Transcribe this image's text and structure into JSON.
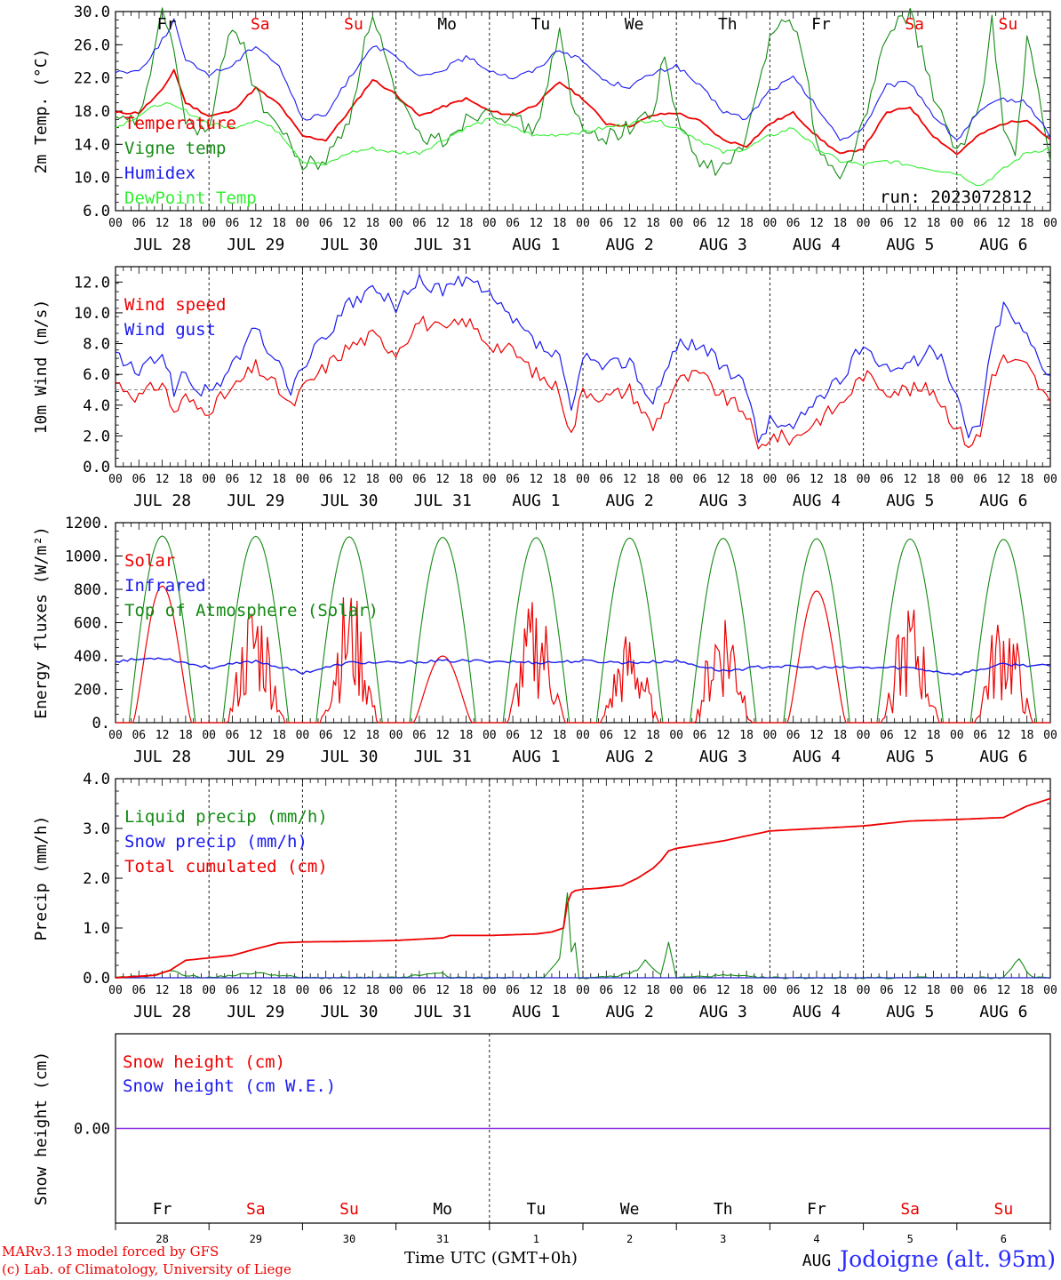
{
  "footer": {
    "credit_line1": "MARv3.13 model forced by GFS",
    "credit_line2": "(c) Lab. of Climatology, University of Liege",
    "xaxis_label": "Time UTC (GMT+0h)",
    "station": "Jodoigne (alt. 95m)"
  },
  "colors": {
    "red": "#ee0000",
    "green": "#138a13",
    "blue": "#1a1aee",
    "lightgreen": "#33ee33",
    "snowline": "#8a2be2"
  },
  "weekdays": [
    {
      "label": "Fr",
      "weekend": false
    },
    {
      "label": "Sa",
      "weekend": true
    },
    {
      "label": "Su",
      "weekend": true
    },
    {
      "label": "Mo",
      "weekend": false
    },
    {
      "label": "Tu",
      "weekend": false
    },
    {
      "label": "We",
      "weekend": false
    },
    {
      "label": "Th",
      "weekend": false
    },
    {
      "label": "Fr",
      "weekend": false
    },
    {
      "label": "Sa",
      "weekend": true
    },
    {
      "label": "Su",
      "weekend": true
    }
  ],
  "chart_data": [
    {
      "type": "line",
      "ylabel": "2m Temp. (°C)",
      "ylim": [
        6.0,
        30.0
      ],
      "yticks": [
        "6.0",
        "10.0",
        "14.0",
        "18.0",
        "22.0",
        "26.0",
        "30.0"
      ],
      "xlim": [
        0,
        240
      ],
      "hour_ticks": [
        "00",
        "06",
        "12",
        "18"
      ],
      "day_labels": [
        "JUL 28",
        "JUL 29",
        "JUL 30",
        "JUL 31",
        "AUG  1",
        "AUG  2",
        "AUG  3",
        "AUG  4",
        "AUG  5",
        "AUG  6"
      ],
      "annotation": "run: 2023072812",
      "series": [
        {
          "name": "Temperature",
          "color": "#ee0000",
          "x": [
            0,
            6,
            12,
            15,
            18,
            24,
            30,
            36,
            42,
            48,
            54,
            60,
            66,
            72,
            78,
            84,
            90,
            96,
            102,
            108,
            114,
            120,
            126,
            132,
            138,
            144,
            150,
            156,
            162,
            168,
            174,
            180,
            186,
            192,
            198,
            204,
            210,
            216,
            222,
            228,
            234,
            240
          ],
          "y": [
            17.8,
            17.8,
            20.5,
            23.0,
            19.0,
            17.4,
            18.0,
            20.8,
            18.8,
            15.0,
            14.5,
            18.0,
            21.8,
            20.0,
            17.4,
            18.5,
            19.5,
            18.0,
            17.5,
            18.8,
            21.5,
            19.5,
            16.5,
            16.2,
            17.5,
            17.8,
            16.8,
            14.5,
            13.8,
            16.5,
            17.8,
            15.0,
            12.8,
            13.5,
            17.8,
            18.5,
            15.0,
            12.8,
            15.2,
            16.5,
            17.0,
            14.5
          ]
        },
        {
          "name": "Vigne temp",
          "color": "#138a13",
          "x": [
            0,
            6,
            10,
            12,
            14,
            18,
            24,
            27,
            30,
            33,
            36,
            42,
            48,
            54,
            60,
            63,
            66,
            69,
            72,
            78,
            84,
            90,
            96,
            102,
            108,
            111,
            114,
            117,
            120,
            126,
            132,
            138,
            141,
            144,
            150,
            156,
            162,
            168,
            171,
            174,
            177,
            180,
            186,
            192,
            198,
            204,
            210,
            216,
            222,
            225,
            228,
            231,
            234,
            240
          ],
          "y": [
            16.5,
            17.0,
            25.0,
            29.5,
            28.0,
            16.5,
            15.5,
            22.5,
            28.5,
            26.0,
            20.0,
            16.0,
            11.5,
            12.0,
            17.0,
            24.0,
            30.0,
            25.0,
            19.5,
            15.0,
            14.5,
            17.0,
            18.5,
            17.0,
            15.5,
            22.0,
            27.5,
            19.0,
            15.5,
            15.0,
            16.0,
            18.0,
            25.0,
            17.0,
            11.5,
            11.0,
            14.5,
            27.0,
            30.0,
            28.0,
            24.0,
            14.0,
            9.5,
            16.5,
            27.0,
            30.0,
            20.0,
            12.5,
            19.0,
            29.0,
            16.0,
            12.0,
            27.0,
            12.0
          ]
        },
        {
          "name": "Humidex",
          "color": "#1a1aee",
          "x": [
            0,
            6,
            12,
            15,
            18,
            24,
            30,
            36,
            42,
            48,
            54,
            60,
            66,
            72,
            78,
            84,
            90,
            96,
            102,
            108,
            114,
            120,
            126,
            132,
            138,
            144,
            150,
            156,
            162,
            168,
            174,
            180,
            186,
            192,
            198,
            204,
            210,
            216,
            222,
            228,
            234,
            240
          ],
          "y": [
            22.8,
            22.8,
            26.5,
            29.0,
            24.0,
            22.5,
            23.5,
            26.0,
            23.5,
            17.0,
            17.5,
            22.0,
            26.0,
            24.5,
            22.0,
            23.0,
            24.5,
            23.0,
            22.0,
            23.0,
            25.5,
            24.0,
            21.5,
            21.0,
            22.5,
            23.5,
            21.0,
            18.0,
            17.0,
            20.5,
            22.0,
            18.5,
            14.5,
            16.0,
            21.0,
            21.5,
            17.5,
            14.5,
            18.0,
            19.5,
            19.0,
            15.0
          ]
        },
        {
          "name": "DewPoint Temp",
          "color": "#33ee33",
          "x": [
            0,
            6,
            12,
            18,
            24,
            30,
            36,
            42,
            48,
            54,
            60,
            66,
            72,
            78,
            84,
            90,
            96,
            102,
            108,
            114,
            120,
            126,
            132,
            138,
            144,
            150,
            156,
            162,
            168,
            174,
            180,
            186,
            192,
            198,
            204,
            210,
            216,
            222,
            228,
            234,
            240
          ],
          "y": [
            16.0,
            17.5,
            19.0,
            18.0,
            16.5,
            16.0,
            17.0,
            15.5,
            12.0,
            11.5,
            13.0,
            13.5,
            13.0,
            13.0,
            14.5,
            16.0,
            17.0,
            16.0,
            15.0,
            15.2,
            15.5,
            16.0,
            16.5,
            17.0,
            16.0,
            14.5,
            13.0,
            13.5,
            15.0,
            16.0,
            13.5,
            12.0,
            11.5,
            12.0,
            11.5,
            11.0,
            10.5,
            9.0,
            11.0,
            13.0,
            13.5
          ]
        }
      ]
    },
    {
      "type": "line",
      "ylabel": "10m Wind (m/s)",
      "ylim": [
        0.0,
        13.0
      ],
      "yticks": [
        "0.0",
        "2.0",
        "4.0",
        "6.0",
        "8.0",
        "10.0",
        "12.0"
      ],
      "xlim": [
        0,
        240
      ],
      "reference_line": 5.0,
      "series": [
        {
          "name": "Wind speed",
          "color": "#ee0000",
          "x": [
            0,
            6,
            12,
            15,
            18,
            21,
            24,
            30,
            36,
            42,
            45,
            48,
            54,
            60,
            66,
            72,
            78,
            84,
            90,
            96,
            102,
            108,
            114,
            117,
            120,
            126,
            132,
            138,
            144,
            150,
            156,
            162,
            165,
            168,
            174,
            180,
            186,
            192,
            198,
            204,
            210,
            216,
            219,
            222,
            225,
            228,
            234,
            240
          ],
          "y": [
            5.5,
            4.5,
            5.5,
            3.5,
            4.5,
            3.8,
            3.8,
            5.0,
            6.5,
            5.0,
            3.8,
            5.0,
            6.5,
            7.8,
            8.5,
            7.5,
            9.5,
            8.8,
            9.5,
            8.0,
            7.5,
            6.0,
            5.0,
            2.0,
            5.0,
            4.5,
            5.0,
            2.5,
            5.5,
            6.0,
            4.5,
            3.5,
            1.0,
            2.0,
            1.8,
            3.0,
            4.0,
            6.0,
            5.0,
            5.0,
            5.0,
            2.5,
            1.5,
            2.0,
            6.0,
            7.0,
            6.5,
            4.0
          ]
        },
        {
          "name": "Wind gust",
          "color": "#1a1aee",
          "x": [
            0,
            6,
            12,
            15,
            18,
            21,
            24,
            30,
            36,
            42,
            45,
            48,
            54,
            60,
            66,
            72,
            78,
            84,
            90,
            96,
            102,
            108,
            114,
            117,
            120,
            126,
            132,
            138,
            144,
            150,
            156,
            162,
            165,
            168,
            174,
            180,
            186,
            192,
            198,
            204,
            210,
            216,
            219,
            222,
            225,
            228,
            234,
            240
          ],
          "y": [
            7.3,
            6.0,
            7.5,
            5.0,
            6.0,
            5.0,
            4.8,
            6.5,
            9.0,
            6.5,
            5.0,
            6.5,
            8.5,
            10.5,
            11.5,
            10.5,
            12.0,
            11.5,
            12.2,
            11.0,
            9.5,
            8.0,
            7.0,
            3.5,
            7.0,
            6.5,
            7.0,
            4.0,
            8.0,
            8.0,
            6.5,
            5.0,
            1.8,
            3.0,
            2.5,
            4.5,
            5.5,
            8.0,
            6.5,
            6.5,
            8.0,
            4.5,
            2.0,
            3.0,
            8.0,
            10.5,
            8.5,
            6.0
          ]
        }
      ]
    },
    {
      "type": "line",
      "ylabel": "Energy fluxes (W/m²)",
      "ylim": [
        0,
        1200
      ],
      "yticks": [
        "0.",
        "200.",
        "400.",
        "600.",
        "800.",
        "1000.",
        "1200."
      ],
      "xlim": [
        0,
        240
      ],
      "series": [
        {
          "name": "Solar",
          "color": "#ee0000",
          "daily_peak": [
            820,
            790,
            830,
            400,
            780,
            560,
            760,
            790,
            740,
            720
          ],
          "daily_broken": [
            false,
            true,
            true,
            false,
            true,
            true,
            true,
            false,
            true,
            true
          ]
        },
        {
          "name": "Infrared",
          "color": "#1a1aee",
          "x": [
            0,
            12,
            24,
            36,
            48,
            60,
            72,
            84,
            96,
            108,
            120,
            132,
            144,
            156,
            168,
            180,
            192,
            204,
            216,
            228,
            240
          ],
          "y": [
            370,
            390,
            330,
            370,
            300,
            360,
            360,
            370,
            370,
            360,
            370,
            360,
            370,
            310,
            340,
            330,
            330,
            330,
            290,
            350,
            340
          ]
        },
        {
          "name": "Top of Atmosphere (Solar)",
          "color": "#138a13",
          "daily_peak": [
            1120,
            1118,
            1115,
            1112,
            1110,
            1108,
            1106,
            1104,
            1102,
            1100
          ]
        }
      ]
    },
    {
      "type": "line",
      "ylabel": "Precip (mm/h)",
      "ylim": [
        0.0,
        4.0
      ],
      "yticks": [
        "0.0",
        "1.0",
        "2.0",
        "3.0",
        "4.0"
      ],
      "xlim": [
        0,
        240
      ],
      "series": [
        {
          "name": "Liquid precip (mm/h)",
          "color": "#138a13",
          "x": [
            0,
            10,
            14,
            18,
            24,
            30,
            36,
            42,
            48,
            72,
            84,
            86,
            88,
            96,
            110,
            114,
            116,
            117,
            118,
            119,
            120,
            124,
            130,
            134,
            136,
            138,
            140,
            142,
            144,
            156,
            168,
            192,
            204,
            212,
            216,
            228,
            232,
            234,
            236,
            240
          ],
          "y": [
            0,
            0.05,
            0.15,
            0.05,
            0,
            0.05,
            0.1,
            0.05,
            0,
            0,
            0.1,
            0,
            0,
            0,
            0,
            0.4,
            1.7,
            0.5,
            0.7,
            0,
            0,
            0,
            0.05,
            0.15,
            0.35,
            0.2,
            0.05,
            0.7,
            0,
            0.05,
            0,
            0,
            0,
            0,
            0,
            0,
            0.4,
            0.1,
            0,
            0
          ]
        },
        {
          "name": "Snow precip (mm/h)",
          "color": "#1a1aee",
          "x": [
            0,
            240
          ],
          "y": [
            0,
            0
          ]
        },
        {
          "name": "Total cumulated (cm)",
          "color": "#ee0000",
          "x": [
            0,
            10,
            14,
            18,
            24,
            30,
            36,
            42,
            48,
            60,
            72,
            84,
            86,
            96,
            108,
            112,
            115,
            116,
            117,
            118,
            120,
            124,
            130,
            134,
            138,
            140,
            142,
            144,
            156,
            168,
            180,
            192,
            204,
            216,
            228,
            234,
            240
          ],
          "y": [
            0,
            0.05,
            0.15,
            0.35,
            0.4,
            0.45,
            0.58,
            0.7,
            0.72,
            0.73,
            0.75,
            0.8,
            0.85,
            0.85,
            0.88,
            0.92,
            1.0,
            1.5,
            1.7,
            1.75,
            1.78,
            1.8,
            1.85,
            2.0,
            2.2,
            2.35,
            2.55,
            2.6,
            2.75,
            2.95,
            3.0,
            3.05,
            3.15,
            3.18,
            3.22,
            3.45,
            3.6
          ]
        }
      ]
    },
    {
      "type": "line",
      "ylabel": "Snow height (cm)",
      "ylim": [
        -1,
        1
      ],
      "yticks": [
        "0.00"
      ],
      "xlim": [
        0,
        240
      ],
      "day_numbers": [
        "28",
        "29",
        "30",
        "31",
        "1",
        "2",
        "3",
        "4",
        "5",
        "6"
      ],
      "month_label": "AUG",
      "series": [
        {
          "name": "Snow height (cm)",
          "color": "#ee0000",
          "x": [
            0,
            240
          ],
          "y": [
            0,
            0
          ]
        },
        {
          "name": "Snow height (cm W.E.)",
          "color": "#1a1aee",
          "x": [
            0,
            240
          ],
          "y": [
            0,
            0
          ]
        }
      ]
    }
  ]
}
